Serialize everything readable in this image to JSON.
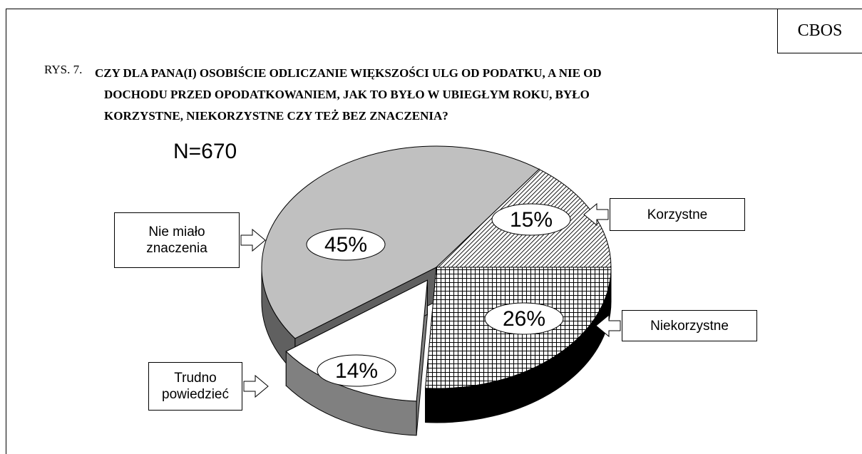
{
  "source": "CBOS",
  "figure_label": "RYS. 7.",
  "chart_data": {
    "type": "pie",
    "title": "CZY DLA PANA(I) OSOBIŚCIE ODLICZANIE WIĘKSZOŚCI ULG OD PODATKU, A NIE OD DOCHODU PRZED OPODATKOWANIEM, JAK TO BYŁO W UBIEGŁYM ROKU, BYŁO KORZYSTNE, NIEKORZYSTNE CZY TEŻ BEZ ZNACZENIA?",
    "annotation": "N=670",
    "categories": [
      "Nie miało znaczenia",
      "Korzystne",
      "Niekorzystne",
      "Trudno powiedzieć"
    ],
    "values": [
      45,
      15,
      26,
      14
    ],
    "value_labels": [
      "45%",
      "15%",
      "26%",
      "14%"
    ],
    "colors": [
      "#c0c0c0",
      "#ffffff",
      "#ffffff",
      "#ffffff"
    ],
    "patterns": [
      null,
      "diagonal",
      "crosshatch",
      null
    ],
    "exploded": [
      false,
      false,
      false,
      true
    ]
  }
}
